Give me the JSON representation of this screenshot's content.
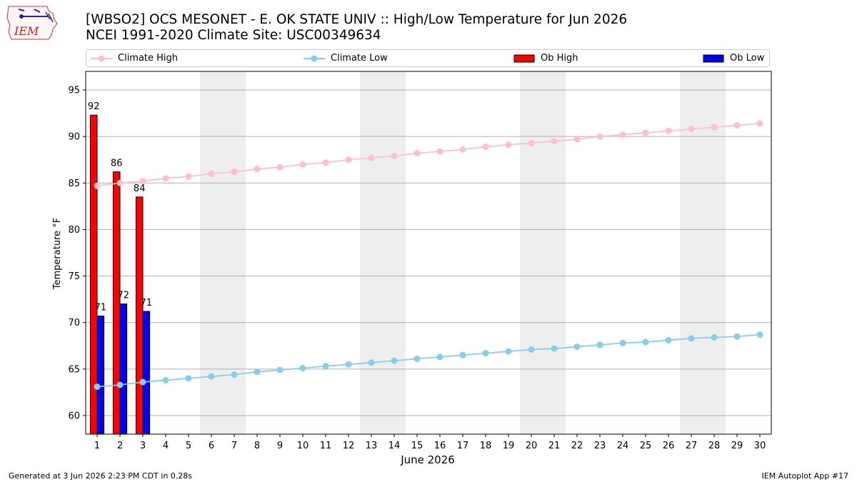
{
  "header": {
    "title_line1": "[WBSO2] OCS MESONET - E. OK STATE UNIV :: High/Low Temperature for Jun 2026",
    "title_line2": "NCEI 1991-2020 Climate Site: USC00349634",
    "logo_text": "IEM"
  },
  "legend": [
    {
      "label": "Climate High",
      "marker": "line-dot",
      "color": "#ffc0cb"
    },
    {
      "label": "Climate Low",
      "marker": "line-dot",
      "color": "#87ceeb"
    },
    {
      "label": "Ob High",
      "marker": "box",
      "color": "#ff0000"
    },
    {
      "label": "Ob Low",
      "marker": "box",
      "color": "#0000ff"
    }
  ],
  "chart_data": {
    "type": "bar",
    "xlabel": "June 2026",
    "ylabel": "Temperature °F",
    "xlim": [
      0.5,
      30.5
    ],
    "ylim": [
      58,
      97
    ],
    "yticks": [
      60,
      65,
      70,
      75,
      80,
      85,
      90,
      95
    ],
    "x": [
      1,
      2,
      3,
      4,
      5,
      6,
      7,
      8,
      9,
      10,
      11,
      12,
      13,
      14,
      15,
      16,
      17,
      18,
      19,
      20,
      21,
      22,
      23,
      24,
      25,
      26,
      27,
      28,
      29,
      30
    ],
    "weekend_shading": [
      [
        6,
        7
      ],
      [
        13,
        14
      ],
      [
        20,
        21
      ],
      [
        27,
        28
      ]
    ],
    "grid": "horizontal",
    "series": [
      {
        "name": "Climate High",
        "type": "line",
        "color": "#ffc0cb",
        "values": [
          84.7,
          85.0,
          85.2,
          85.5,
          85.7,
          86.0,
          86.2,
          86.5,
          86.7,
          87.0,
          87.2,
          87.5,
          87.7,
          87.9,
          88.2,
          88.4,
          88.6,
          88.9,
          89.1,
          89.3,
          89.5,
          89.7,
          90.0,
          90.2,
          90.4,
          90.6,
          90.8,
          91.0,
          91.2,
          91.4
        ]
      },
      {
        "name": "Climate Low",
        "type": "line",
        "color": "#87ceeb",
        "values": [
          63.1,
          63.3,
          63.6,
          63.8,
          64.0,
          64.2,
          64.4,
          64.7,
          64.9,
          65.1,
          65.3,
          65.5,
          65.7,
          65.9,
          66.1,
          66.3,
          66.5,
          66.7,
          66.9,
          67.1,
          67.2,
          67.4,
          67.6,
          67.8,
          67.9,
          68.1,
          68.3,
          68.4,
          68.5,
          68.7
        ]
      },
      {
        "name": "Ob High",
        "type": "bar",
        "color": "#ff0000",
        "x": [
          1,
          2,
          3
        ],
        "values": [
          92.3,
          86.2,
          83.5
        ],
        "labels": [
          "92",
          "86",
          "84"
        ]
      },
      {
        "name": "Ob Low",
        "type": "bar",
        "color": "#0000ff",
        "x": [
          1,
          2,
          3
        ],
        "values": [
          70.7,
          72.0,
          71.2
        ],
        "labels": [
          "71",
          "72",
          "71"
        ]
      }
    ]
  },
  "footer": {
    "left": "Generated at 3 Jun 2026 2:23 PM CDT in 0.28s",
    "right": "IEM Autoplot App #17"
  }
}
